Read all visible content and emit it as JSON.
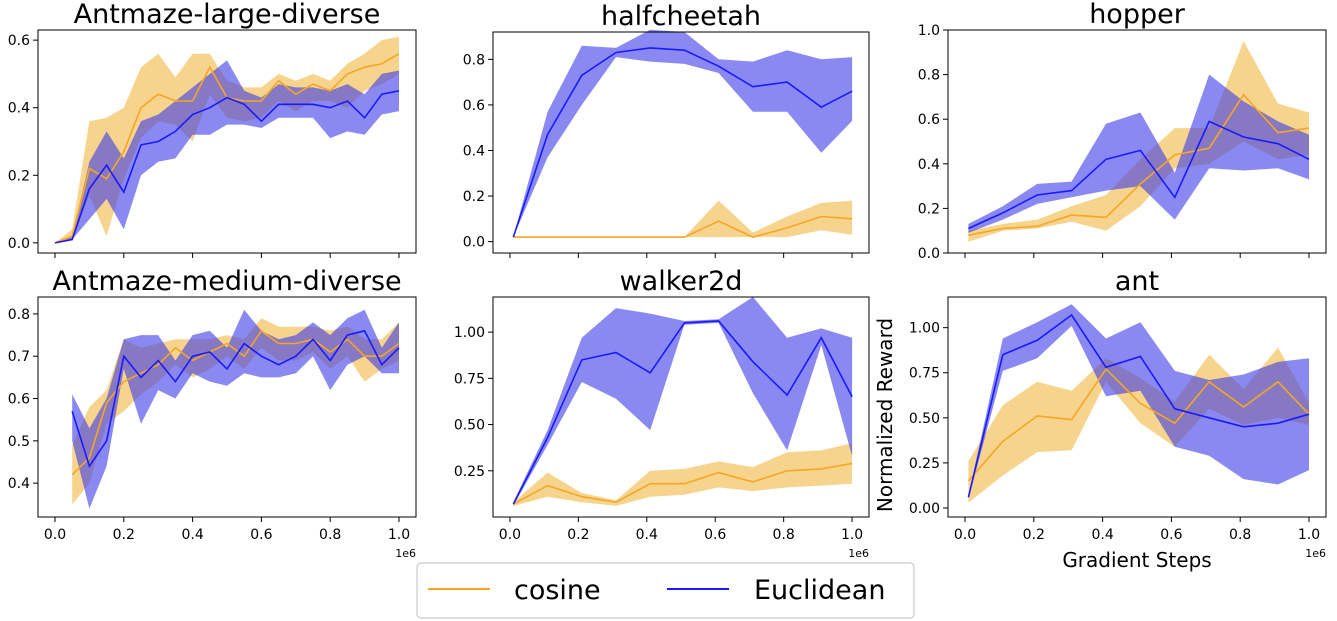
{
  "colors": {
    "cosine": "#f5a623",
    "euclidean": "#1a1aff",
    "cosine_fill": "#f0b030",
    "euclidean_fill": "#3a3ae8"
  },
  "legend": {
    "entries": [
      "cosine",
      "Euclidean"
    ],
    "placement": "bottom-center"
  },
  "chart_data": [
    {
      "type": "line",
      "title": "Antmaze-large-diverse",
      "xlabel": "",
      "ylabel": "",
      "xlim": [
        0,
        1000000
      ],
      "ylim": [
        -0.03,
        0.63
      ],
      "yticks": [
        0.0,
        0.2,
        0.4,
        0.6
      ],
      "ytick_labels": [
        "0.0",
        "0.2",
        "0.4",
        "0.6"
      ],
      "xticks": [
        0,
        200000,
        400000,
        600000,
        800000,
        1000000
      ],
      "xtick_labels": [],
      "xscale_label": "",
      "x": [
        0,
        50000,
        100000,
        150000,
        200000,
        250000,
        300000,
        350000,
        400000,
        450000,
        500000,
        550000,
        600000,
        650000,
        700000,
        750000,
        800000,
        850000,
        900000,
        950000,
        1000000
      ],
      "series": [
        {
          "name": "cosine",
          "mean": [
            0.0,
            0.02,
            0.22,
            0.19,
            0.27,
            0.4,
            0.44,
            0.42,
            0.42,
            0.52,
            0.43,
            0.42,
            0.42,
            0.48,
            0.44,
            0.47,
            0.45,
            0.5,
            0.52,
            0.53,
            0.56
          ],
          "lower": [
            0.0,
            0.01,
            0.14,
            0.02,
            0.19,
            0.31,
            0.36,
            0.35,
            0.3,
            0.44,
            0.37,
            0.36,
            0.37,
            0.42,
            0.39,
            0.42,
            0.42,
            0.4,
            0.45,
            0.47,
            0.5
          ],
          "upper": [
            0.0,
            0.04,
            0.36,
            0.37,
            0.4,
            0.52,
            0.56,
            0.49,
            0.56,
            0.56,
            0.48,
            0.46,
            0.46,
            0.5,
            0.48,
            0.5,
            0.48,
            0.53,
            0.56,
            0.6,
            0.61
          ]
        },
        {
          "name": "Euclidean",
          "mean": [
            0.0,
            0.01,
            0.16,
            0.23,
            0.15,
            0.29,
            0.3,
            0.33,
            0.38,
            0.4,
            0.43,
            0.41,
            0.36,
            0.41,
            0.41,
            0.41,
            0.4,
            0.42,
            0.37,
            0.44,
            0.45
          ],
          "lower": [
            0.0,
            0.01,
            0.07,
            0.13,
            0.04,
            0.2,
            0.24,
            0.25,
            0.32,
            0.32,
            0.35,
            0.35,
            0.34,
            0.37,
            0.37,
            0.37,
            0.31,
            0.33,
            0.32,
            0.38,
            0.39
          ],
          "upper": [
            0.0,
            0.02,
            0.24,
            0.33,
            0.25,
            0.36,
            0.38,
            0.42,
            0.46,
            0.5,
            0.54,
            0.45,
            0.43,
            0.47,
            0.46,
            0.46,
            0.45,
            0.47,
            0.44,
            0.5,
            0.51
          ]
        }
      ]
    },
    {
      "type": "line",
      "title": "halfcheetah",
      "xlabel": "",
      "ylabel": "",
      "xlim": [
        0,
        1000000
      ],
      "ylim": [
        -0.05,
        0.92
      ],
      "yticks": [
        0.0,
        0.2,
        0.4,
        0.6,
        0.8
      ],
      "ytick_labels": [
        "0.0",
        "0.2",
        "0.4",
        "0.6",
        "0.8"
      ],
      "xticks": [
        0,
        200000,
        400000,
        600000,
        800000,
        1000000
      ],
      "xtick_labels": [],
      "xscale_label": "",
      "x": [
        10000,
        110000,
        210000,
        310000,
        410000,
        510000,
        610000,
        710000,
        810000,
        910000,
        1000000
      ],
      "series": [
        {
          "name": "cosine",
          "mean": [
            0.02,
            0.02,
            0.02,
            0.02,
            0.02,
            0.02,
            0.09,
            0.02,
            0.06,
            0.11,
            0.1
          ],
          "lower": [
            0.02,
            0.02,
            0.02,
            0.02,
            0.02,
            0.02,
            0.02,
            0.02,
            0.02,
            0.05,
            0.03
          ],
          "upper": [
            0.02,
            0.02,
            0.02,
            0.02,
            0.02,
            0.02,
            0.18,
            0.04,
            0.11,
            0.17,
            0.18
          ]
        },
        {
          "name": "Euclidean",
          "mean": [
            0.02,
            0.47,
            0.73,
            0.83,
            0.85,
            0.84,
            0.77,
            0.68,
            0.7,
            0.59,
            0.66
          ],
          "lower": [
            0.02,
            0.37,
            0.6,
            0.81,
            0.79,
            0.78,
            0.74,
            0.57,
            0.57,
            0.39,
            0.53
          ],
          "upper": [
            0.02,
            0.57,
            0.86,
            0.85,
            0.93,
            0.92,
            0.8,
            0.79,
            0.84,
            0.8,
            0.81
          ]
        }
      ]
    },
    {
      "type": "line",
      "title": "hopper",
      "xlabel": "",
      "ylabel": "",
      "xlim": [
        0,
        1000000
      ],
      "ylim": [
        0.0,
        1.0
      ],
      "yticks": [
        0.0,
        0.2,
        0.4,
        0.6,
        0.8,
        1.0
      ],
      "ytick_labels": [
        "0.0",
        "0.2",
        "0.4",
        "0.6",
        "0.8",
        "1.0"
      ],
      "xticks": [
        0,
        200000,
        400000,
        600000,
        800000,
        1000000
      ],
      "xtick_labels": [],
      "xscale_label": "",
      "x": [
        10000,
        110000,
        210000,
        310000,
        410000,
        510000,
        610000,
        710000,
        810000,
        910000,
        1000000
      ],
      "series": [
        {
          "name": "cosine",
          "mean": [
            0.08,
            0.11,
            0.12,
            0.17,
            0.16,
            0.31,
            0.44,
            0.47,
            0.71,
            0.54,
            0.56
          ],
          "lower": [
            0.05,
            0.1,
            0.11,
            0.14,
            0.1,
            0.21,
            0.38,
            0.4,
            0.5,
            0.42,
            0.44
          ],
          "upper": [
            0.1,
            0.13,
            0.15,
            0.21,
            0.26,
            0.42,
            0.56,
            0.56,
            0.95,
            0.67,
            0.63
          ]
        },
        {
          "name": "Euclidean",
          "mean": [
            0.11,
            0.18,
            0.26,
            0.28,
            0.42,
            0.46,
            0.25,
            0.59,
            0.52,
            0.49,
            0.42
          ],
          "lower": [
            0.09,
            0.15,
            0.22,
            0.25,
            0.28,
            0.3,
            0.15,
            0.38,
            0.37,
            0.38,
            0.33
          ],
          "upper": [
            0.13,
            0.21,
            0.31,
            0.32,
            0.58,
            0.63,
            0.36,
            0.8,
            0.68,
            0.59,
            0.53
          ]
        }
      ]
    },
    {
      "type": "line",
      "title": "Antmaze-medium-diverse",
      "xlabel": "",
      "ylabel": "",
      "xlim": [
        0,
        1000000
      ],
      "ylim": [
        0.32,
        0.84
      ],
      "yticks": [
        0.4,
        0.5,
        0.6,
        0.7,
        0.8
      ],
      "ytick_labels": [
        "0.4",
        "0.5",
        "0.6",
        "0.7",
        "0.8"
      ],
      "xticks": [
        0,
        200000,
        400000,
        600000,
        800000,
        1000000
      ],
      "xtick_labels": [
        "0.0",
        "0.2",
        "0.4",
        "0.6",
        "0.8",
        "1.0"
      ],
      "xscale_label": "1e6",
      "x": [
        50000,
        100000,
        150000,
        200000,
        250000,
        300000,
        350000,
        400000,
        450000,
        500000,
        550000,
        600000,
        650000,
        700000,
        750000,
        800000,
        850000,
        900000,
        950000,
        1000000
      ],
      "series": [
        {
          "name": "cosine",
          "mean": [
            0.42,
            0.46,
            0.59,
            0.64,
            0.66,
            0.68,
            0.72,
            0.69,
            0.71,
            0.73,
            0.7,
            0.76,
            0.73,
            0.73,
            0.74,
            0.71,
            0.74,
            0.7,
            0.7,
            0.73
          ],
          "lower": [
            0.35,
            0.4,
            0.54,
            0.57,
            0.61,
            0.64,
            0.68,
            0.65,
            0.67,
            0.7,
            0.67,
            0.72,
            0.69,
            0.69,
            0.71,
            0.67,
            0.7,
            0.64,
            0.67,
            0.69
          ],
          "upper": [
            0.49,
            0.58,
            0.62,
            0.74,
            0.72,
            0.73,
            0.74,
            0.74,
            0.74,
            0.75,
            0.74,
            0.79,
            0.77,
            0.77,
            0.77,
            0.76,
            0.77,
            0.74,
            0.74,
            0.78
          ]
        },
        {
          "name": "Euclidean",
          "mean": [
            0.57,
            0.44,
            0.5,
            0.7,
            0.65,
            0.69,
            0.64,
            0.7,
            0.71,
            0.67,
            0.73,
            0.7,
            0.68,
            0.7,
            0.74,
            0.69,
            0.75,
            0.76,
            0.68,
            0.72
          ],
          "lower": [
            0.5,
            0.34,
            0.44,
            0.67,
            0.54,
            0.62,
            0.6,
            0.66,
            0.64,
            0.63,
            0.66,
            0.65,
            0.65,
            0.66,
            0.7,
            0.62,
            0.68,
            0.7,
            0.66,
            0.66
          ],
          "upper": [
            0.61,
            0.53,
            0.6,
            0.74,
            0.75,
            0.75,
            0.69,
            0.75,
            0.76,
            0.72,
            0.81,
            0.76,
            0.74,
            0.75,
            0.78,
            0.75,
            0.79,
            0.81,
            0.72,
            0.78
          ]
        }
      ]
    },
    {
      "type": "line",
      "title": "walker2d",
      "xlabel": "",
      "ylabel": "",
      "xlim": [
        0,
        1000000
      ],
      "ylim": [
        0.0,
        1.19
      ],
      "yticks": [
        0.25,
        0.5,
        0.75,
        1.0
      ],
      "ytick_labels": [
        "0.25",
        "0.50",
        "0.75",
        "1.00"
      ],
      "xticks": [
        0,
        200000,
        400000,
        600000,
        800000,
        1000000
      ],
      "xtick_labels": [
        "0.0",
        "0.2",
        "0.4",
        "0.6",
        "0.8",
        "1.0"
      ],
      "xscale_label": "1e6",
      "x": [
        10000,
        110000,
        210000,
        310000,
        410000,
        510000,
        610000,
        710000,
        810000,
        910000,
        1000000
      ],
      "series": [
        {
          "name": "cosine",
          "mean": [
            0.07,
            0.17,
            0.11,
            0.08,
            0.18,
            0.18,
            0.24,
            0.19,
            0.25,
            0.26,
            0.29
          ],
          "lower": [
            0.06,
            0.11,
            0.08,
            0.06,
            0.11,
            0.12,
            0.16,
            0.14,
            0.16,
            0.17,
            0.18
          ],
          "upper": [
            0.08,
            0.24,
            0.13,
            0.09,
            0.25,
            0.26,
            0.3,
            0.27,
            0.35,
            0.36,
            0.4
          ]
        },
        {
          "name": "Euclidean",
          "mean": [
            0.07,
            0.43,
            0.85,
            0.89,
            0.78,
            1.05,
            1.06,
            0.84,
            0.66,
            0.97,
            0.65
          ],
          "lower": [
            0.06,
            0.39,
            0.73,
            0.64,
            0.47,
            1.04,
            1.05,
            0.67,
            0.36,
            0.93,
            0.33
          ],
          "upper": [
            0.08,
            0.47,
            0.97,
            1.13,
            1.1,
            1.06,
            1.07,
            1.19,
            0.97,
            1.02,
            0.97
          ]
        }
      ]
    },
    {
      "type": "line",
      "title": "ant",
      "xlabel": "Gradient Steps",
      "ylabel": "Normalized Reward",
      "xlim": [
        0,
        1000000
      ],
      "ylim": [
        -0.05,
        1.17
      ],
      "yticks": [
        0.0,
        0.25,
        0.5,
        0.75,
        1.0
      ],
      "ytick_labels": [
        "0.00",
        "0.25",
        "0.50",
        "0.75",
        "1.00"
      ],
      "xticks": [
        0,
        200000,
        400000,
        600000,
        800000,
        1000000
      ],
      "xtick_labels": [
        "0.0",
        "0.2",
        "0.4",
        "0.6",
        "0.8",
        "1.0"
      ],
      "xscale_label": "1e6",
      "x": [
        10000,
        110000,
        210000,
        310000,
        410000,
        510000,
        610000,
        710000,
        810000,
        910000,
        1000000
      ],
      "series": [
        {
          "name": "cosine",
          "mean": [
            0.15,
            0.37,
            0.51,
            0.49,
            0.77,
            0.58,
            0.47,
            0.7,
            0.56,
            0.7,
            0.52
          ],
          "lower": [
            0.03,
            0.18,
            0.31,
            0.32,
            0.7,
            0.47,
            0.34,
            0.55,
            0.46,
            0.5,
            0.46
          ],
          "upper": [
            0.26,
            0.57,
            0.7,
            0.65,
            0.83,
            0.72,
            0.59,
            0.85,
            0.66,
            0.89,
            0.58
          ]
        },
        {
          "name": "Euclidean",
          "mean": [
            0.06,
            0.85,
            0.93,
            1.07,
            0.78,
            0.84,
            0.55,
            0.5,
            0.45,
            0.47,
            0.52
          ],
          "lower": [
            0.05,
            0.76,
            0.83,
            1.01,
            0.62,
            0.65,
            0.34,
            0.29,
            0.16,
            0.13,
            0.21
          ],
          "upper": [
            0.07,
            0.94,
            1.03,
            1.13,
            0.94,
            1.03,
            0.76,
            0.71,
            0.74,
            0.81,
            0.83
          ]
        }
      ]
    }
  ]
}
